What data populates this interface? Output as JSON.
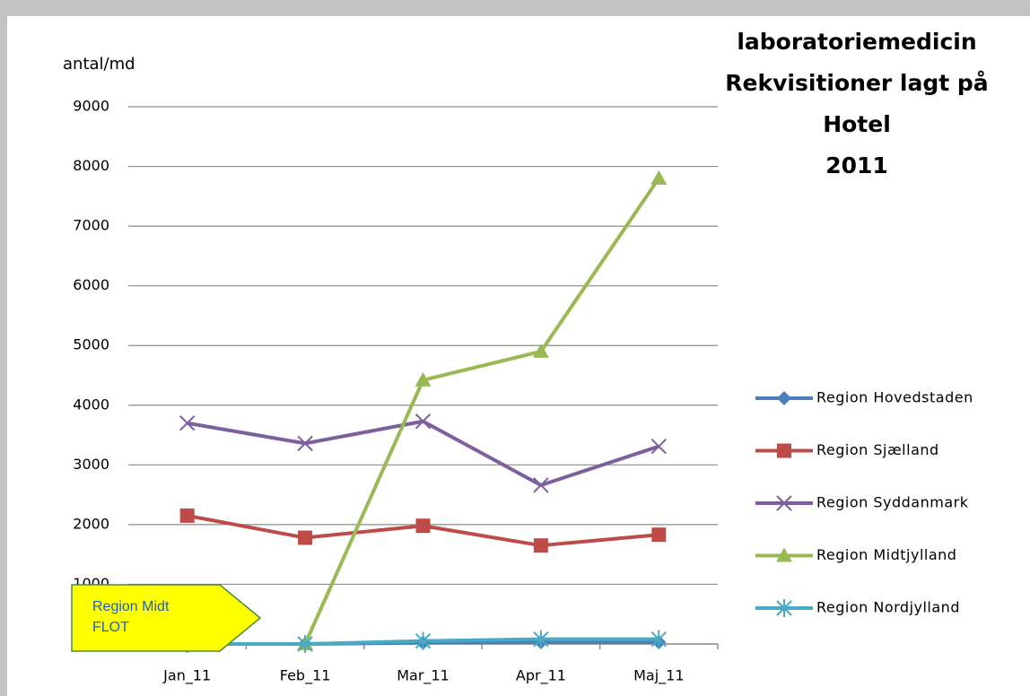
{
  "chart_data": {
    "type": "line",
    "title": [
      "laboratoriemedicin",
      "Rekvisitioner lagt på",
      "Hotel",
      "2011"
    ],
    "y_label": "antal/md",
    "categories": [
      "Jan_11",
      "Feb_11",
      "Mar_11",
      "Apr_11",
      "Maj_11"
    ],
    "series": [
      {
        "name": "Region Hovedstaden",
        "color": "#4a7ebb",
        "marker": "diamond",
        "values": [
          0,
          0,
          20,
          30,
          30
        ]
      },
      {
        "name": "Region Sjælland",
        "color": "#be4b48",
        "marker": "square",
        "values": [
          2150,
          1780,
          1980,
          1650,
          1830
        ]
      },
      {
        "name": "Region Syddanmark",
        "color": "#7d5fa0",
        "marker": "x",
        "values": [
          3700,
          3360,
          3730,
          2660,
          3310
        ]
      },
      {
        "name": "Region Midtjylland",
        "color": "#98b954",
        "marker": "triangle",
        "values": [
          0,
          0,
          4420,
          4900,
          7800
        ]
      },
      {
        "name": "Region Nordjylland",
        "color": "#46aac5",
        "marker": "star",
        "values": [
          0,
          0,
          50,
          80,
          80
        ]
      }
    ],
    "ylim": [
      0,
      9000
    ],
    "yticks": [
      0,
      1000,
      2000,
      3000,
      4000,
      5000,
      6000,
      7000,
      8000,
      9000
    ],
    "grid": true,
    "legend": "right",
    "annotation": [
      "Region Midt",
      "FLOT"
    ]
  }
}
